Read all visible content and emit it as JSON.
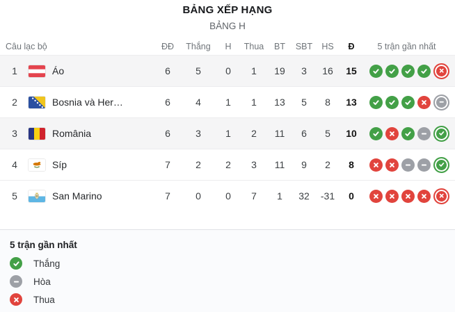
{
  "page_title": "BẢNG XẾP HẠNG",
  "group_title": "BẢNG H",
  "table": {
    "columns": {
      "club": "Câu lạc bộ",
      "played": "ĐĐ",
      "wins": "Thắng",
      "draws": "H",
      "losses": "Thua",
      "goals_for": "BT",
      "goals_against": "SBT",
      "goal_diff": "HS",
      "points": "Đ",
      "form": "5 trận gần nhất"
    },
    "rows": [
      {
        "rank": "1",
        "club": "Áo",
        "flag": "austria-flag",
        "played": "6",
        "wins": "5",
        "draws": "0",
        "losses": "1",
        "goals_for": "19",
        "goals_against": "3",
        "goal_diff": "16",
        "points": "15",
        "form": [
          "win",
          "win",
          "win",
          "win",
          "loss"
        ]
      },
      {
        "rank": "2",
        "club": "Bosnia và Her…",
        "flag": "bosnia-herzegovina-flag",
        "played": "6",
        "wins": "4",
        "draws": "1",
        "losses": "1",
        "goals_for": "13",
        "goals_against": "5",
        "goal_diff": "8",
        "points": "13",
        "form": [
          "win",
          "win",
          "win",
          "loss",
          "draw"
        ]
      },
      {
        "rank": "3",
        "club": "România",
        "flag": "romania-flag",
        "played": "6",
        "wins": "3",
        "draws": "1",
        "losses": "2",
        "goals_for": "11",
        "goals_against": "6",
        "goal_diff": "5",
        "points": "10",
        "form": [
          "win",
          "loss",
          "win",
          "draw",
          "win"
        ]
      },
      {
        "rank": "4",
        "club": "Síp",
        "flag": "cyprus-flag",
        "played": "7",
        "wins": "2",
        "draws": "2",
        "losses": "3",
        "goals_for": "11",
        "goals_against": "9",
        "goal_diff": "2",
        "points": "8",
        "form": [
          "loss",
          "loss",
          "draw",
          "draw",
          "win"
        ]
      },
      {
        "rank": "5",
        "club": "San Marino",
        "flag": "san-marino-flag",
        "played": "7",
        "wins": "0",
        "draws": "0",
        "losses": "7",
        "goals_for": "1",
        "goals_against": "32",
        "goal_diff": "-31",
        "points": "0",
        "form": [
          "loss",
          "loss",
          "loss",
          "loss",
          "loss"
        ]
      }
    ]
  },
  "legend": {
    "title": "5 trận gần nhất",
    "items": [
      {
        "type": "win",
        "label": "Thắng"
      },
      {
        "type": "draw",
        "label": "Hòa"
      },
      {
        "type": "loss",
        "label": "Thua"
      }
    ]
  },
  "colors": {
    "win": "#43a047",
    "draw": "#9da0a6",
    "loss": "#e1443d",
    "alt_row_bg": "#f5f5f6",
    "footer_bg": "#fafbfd"
  }
}
